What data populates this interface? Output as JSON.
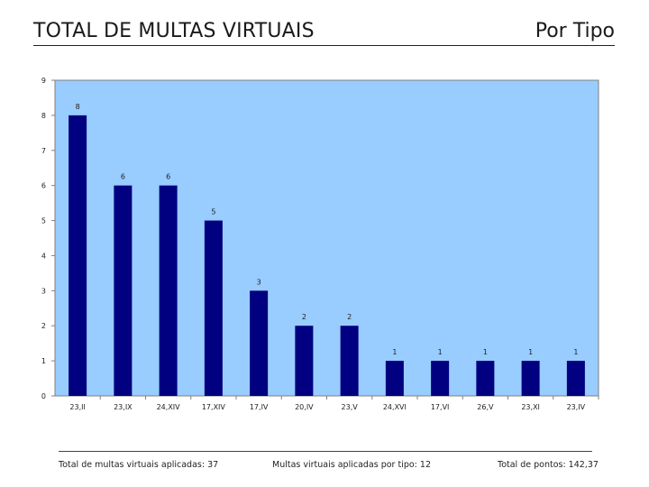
{
  "header": {
    "title": "TOTAL DE MULTAS VIRTUAIS",
    "subtitle": "Por Tipo"
  },
  "chart_data": {
    "type": "bar",
    "categories": [
      "23,II",
      "23,IX",
      "24,XIV",
      "17,XIV",
      "17,IV",
      "20,IV",
      "23,V",
      "24,XVI",
      "17,VI",
      "26,V",
      "23,XI",
      "23,IV"
    ],
    "values": [
      8,
      6,
      6,
      5,
      3,
      2,
      2,
      1,
      1,
      1,
      1,
      1
    ],
    "ylim": [
      0,
      9
    ],
    "yticks": [
      0,
      1,
      2,
      3,
      4,
      5,
      6,
      7,
      8,
      9
    ],
    "grid": false,
    "legend": "none",
    "colors": {
      "bar": "#000080",
      "plot_background": "#99ccff",
      "axis": "#808080"
    }
  },
  "footer": {
    "total_label": "Total de multas virtuais aplicadas: 37",
    "by_type_label": "Multas virtuais aplicadas por tipo: 12",
    "points_label": "Total de pontos: 142,37"
  }
}
